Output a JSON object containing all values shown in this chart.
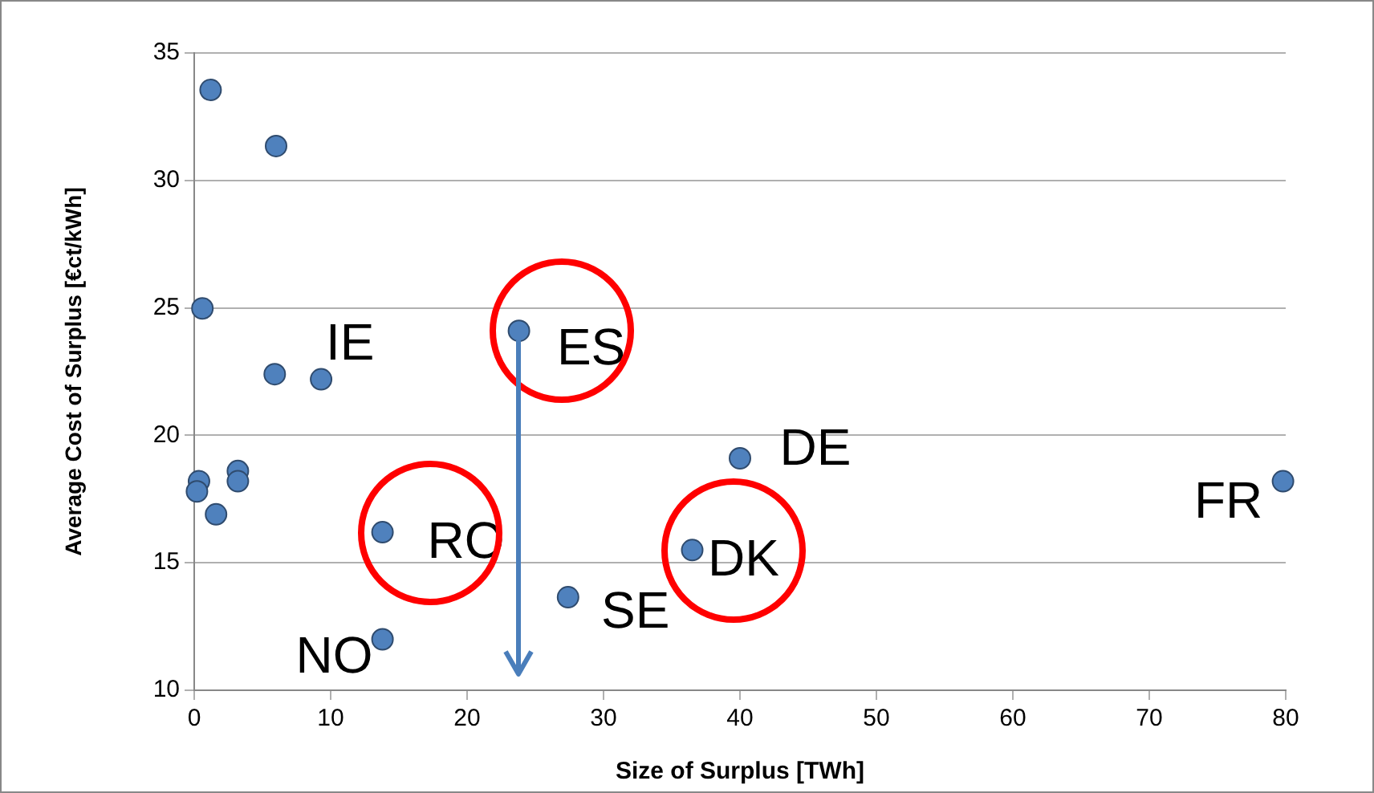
{
  "chart_data": {
    "type": "scatter",
    "xlabel": "Size of Surplus [TWh]",
    "ylabel": "Average Cost of Surplus [€ct/kWh]",
    "x": [
      1.2,
      6.0,
      0.6,
      5.9,
      9.3,
      0.35,
      0.2,
      3.2,
      3.2,
      1.6,
      13.8,
      13.8,
      23.8,
      27.4,
      36.5,
      40.0,
      79.8
    ],
    "series": [
      {
        "color": "#4f81bd",
        "values": [
          33.55,
          31.35,
          24.98,
          22.4,
          22.2,
          18.2,
          17.8,
          18.6,
          18.2,
          16.9,
          16.2,
          12.0,
          24.1,
          13.65,
          15.5,
          19.1,
          18.2
        ]
      }
    ],
    "xlim": [
      0,
      80
    ],
    "xticks": [
      0,
      10,
      20,
      30,
      40,
      50,
      60,
      70,
      80
    ],
    "ylim": [
      10,
      35
    ],
    "yticks": [
      10,
      15,
      20,
      25,
      30,
      35
    ],
    "grid": "y",
    "legend": false,
    "marker": "circle",
    "annotations": [
      {
        "text": "IE",
        "x": 9.3,
        "y": 22.2
      },
      {
        "text": "ES",
        "x": 23.8,
        "y": 24.1
      },
      {
        "text": "DE",
        "x": 40.0,
        "y": 19.1
      },
      {
        "text": "RO",
        "x": 13.8,
        "y": 16.2
      },
      {
        "text": "DK",
        "x": 36.5,
        "y": 15.5
      },
      {
        "text": "SE",
        "x": 27.4,
        "y": 13.65
      },
      {
        "text": "NO",
        "x": 13.8,
        "y": 12.0
      },
      {
        "text": "FR",
        "x": 79.8,
        "y": 18.2
      }
    ]
  }
}
